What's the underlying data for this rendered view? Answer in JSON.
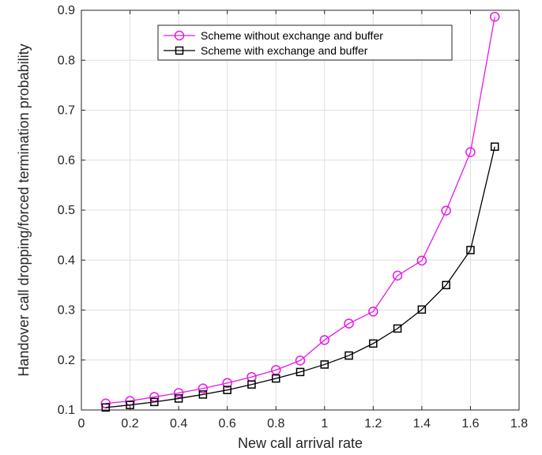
{
  "chart_data": {
    "type": "line",
    "title": "",
    "xlabel": "New call arrival rate",
    "ylabel": "Handover call dropping/forced termination probability",
    "xlim": [
      0,
      1.8
    ],
    "ylim": [
      0.1,
      0.9
    ],
    "xticks": [
      0,
      0.2,
      0.4,
      0.6,
      0.8,
      1,
      1.2,
      1.4,
      1.6,
      1.8
    ],
    "yticks": [
      0.1,
      0.2,
      0.3,
      0.4,
      0.5,
      0.6,
      0.7,
      0.8,
      0.9
    ],
    "xtick_labels": [
      "0",
      "0.2",
      "0.4",
      "0.6",
      "0.8",
      "1",
      "1.2",
      "1.4",
      "1.6",
      "1.8"
    ],
    "ytick_labels": [
      "0.1",
      "0.2",
      "0.3",
      "0.4",
      "0.5",
      "0.6",
      "0.7",
      "0.8",
      "0.9"
    ],
    "grid": true,
    "legend_position": "top-center",
    "series": [
      {
        "name": "Scheme without exchange and buffer",
        "color": "#e619e6",
        "marker": "circle",
        "x": [
          0.1,
          0.2,
          0.3,
          0.4,
          0.5,
          0.6,
          0.7,
          0.8,
          0.9,
          1.0,
          1.1,
          1.2,
          1.3,
          1.4,
          1.5,
          1.6,
          1.7
        ],
        "y": [
          0.113,
          0.118,
          0.126,
          0.134,
          0.143,
          0.154,
          0.166,
          0.18,
          0.199,
          0.24,
          0.273,
          0.297,
          0.369,
          0.399,
          0.499,
          0.616,
          0.887
        ]
      },
      {
        "name": "Scheme with exchange and buffer",
        "color": "#000000",
        "marker": "square",
        "x": [
          0.1,
          0.2,
          0.3,
          0.4,
          0.5,
          0.6,
          0.7,
          0.8,
          0.9,
          1.0,
          1.1,
          1.2,
          1.3,
          1.4,
          1.5,
          1.6,
          1.7
        ],
        "y": [
          0.105,
          0.11,
          0.116,
          0.123,
          0.131,
          0.14,
          0.151,
          0.163,
          0.176,
          0.191,
          0.209,
          0.233,
          0.263,
          0.301,
          0.35,
          0.42,
          0.627
        ]
      }
    ]
  }
}
